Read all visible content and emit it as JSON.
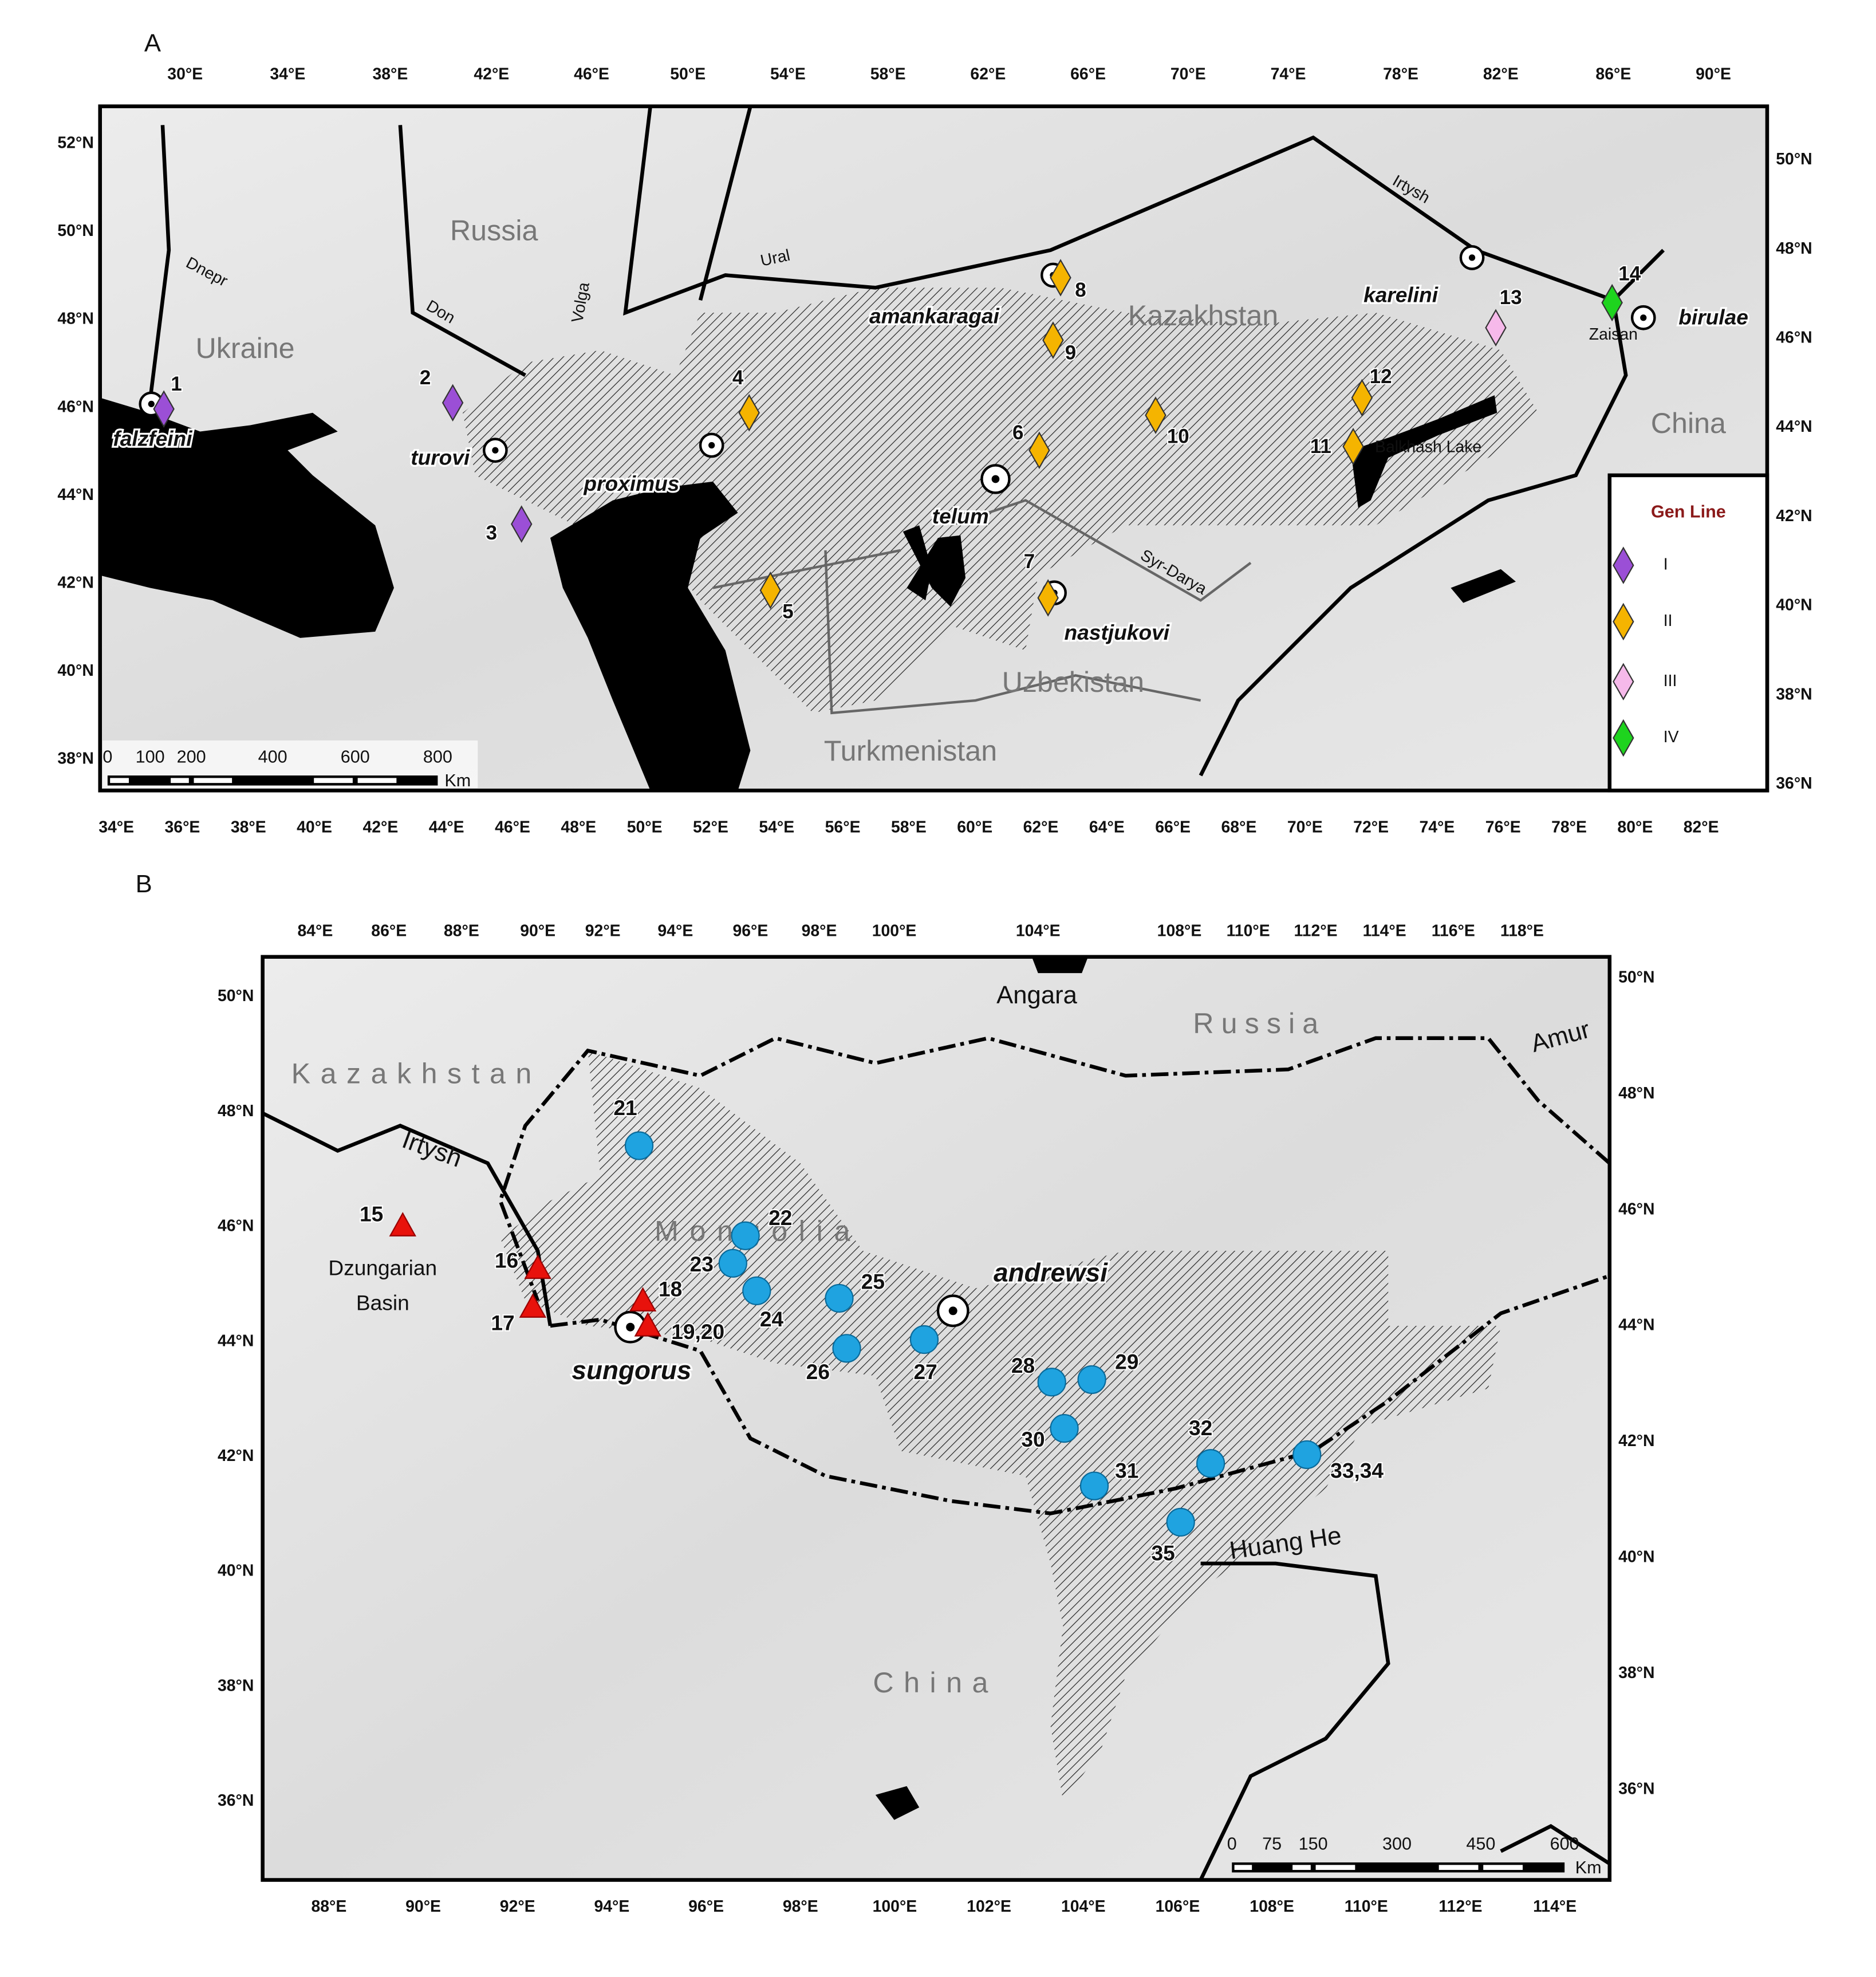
{
  "panel_a": {
    "label": "A",
    "top_ticks": [
      "30°E",
      "34°E",
      "38°E",
      "42°E",
      "46°E",
      "50°E",
      "54°E",
      "58°E",
      "62°E",
      "66°E",
      "70°E",
      "74°E",
      "78°E",
      "82°E",
      "86°E",
      "90°E"
    ],
    "bottom_ticks": [
      "34°E",
      "36°E",
      "38°E",
      "40°E",
      "42°E",
      "44°E",
      "46°E",
      "48°E",
      "50°E",
      "52°E",
      "54°E",
      "56°E",
      "58°E",
      "60°E",
      "62°E",
      "64°E",
      "66°E",
      "68°E",
      "70°E",
      "72°E",
      "74°E",
      "76°E",
      "78°E",
      "80°E",
      "82°E"
    ],
    "left_ticks": [
      "52°N",
      "50°N",
      "48°N",
      "46°N",
      "44°N",
      "42°N",
      "40°N",
      "38°N"
    ],
    "right_ticks": [
      "50°N",
      "48°N",
      "46°N",
      "44°N",
      "42°N",
      "40°N",
      "38°N",
      "36°N"
    ],
    "countries": [
      "Russia",
      "Ukraine",
      "Kazakhstan",
      "China",
      "Uzbekistan",
      "Turkmenistan"
    ],
    "waters": [
      "Dnepr",
      "Don",
      "Volga",
      "Ural",
      "Irtysh",
      "Syr-Darya",
      "Balkhash Lake",
      "Zaisan"
    ],
    "taxa": [
      "falzfeini",
      "turovi",
      "proximus",
      "telum",
      "nastjukovi",
      "amankaragai",
      "karelini",
      "birulae"
    ],
    "sites": [
      "1",
      "2",
      "3",
      "4",
      "5",
      "6",
      "7",
      "8",
      "9",
      "10",
      "11",
      "12",
      "13",
      "14"
    ],
    "legend": {
      "title": "Gen Line",
      "entries": [
        {
          "label": "I",
          "color": "#9b4fd6"
        },
        {
          "label": "II",
          "color": "#f5b400"
        },
        {
          "label": "III",
          "color": "#f6b9ea"
        },
        {
          "label": "IV",
          "color": "#1ed41e"
        }
      ]
    },
    "scale": {
      "ticks": [
        "0",
        "100",
        "200",
        "400",
        "600",
        "800"
      ],
      "unit": "Km"
    }
  },
  "panel_b": {
    "label": "B",
    "top_ticks": [
      "84°E",
      "86°E",
      "88°E",
      "90°E",
      "92°E",
      "94°E",
      "96°E",
      "98°E",
      "100°E",
      "104°E",
      "108°E",
      "110°E",
      "112°E",
      "114°E",
      "116°E",
      "118°E"
    ],
    "bottom_ticks": [
      "88°E",
      "90°E",
      "92°E",
      "94°E",
      "96°E",
      "98°E",
      "100°E",
      "102°E",
      "104°E",
      "106°E",
      "108°E",
      "110°E",
      "112°E",
      "114°E"
    ],
    "left_ticks": [
      "50°N",
      "48°N",
      "46°N",
      "44°N",
      "42°N",
      "40°N",
      "38°N",
      "36°N"
    ],
    "right_ticks": [
      "50°N",
      "48°N",
      "46°N",
      "44°N",
      "42°N",
      "40°N",
      "38°N",
      "36°N"
    ],
    "countries": [
      "Kazakhstan",
      "Russia",
      "Mongolia",
      "China"
    ],
    "waters": [
      "Angara",
      "Amur",
      "Irtysh",
      "Huang He"
    ],
    "basin": [
      "Dzungarian",
      "Basin"
    ],
    "taxa": [
      "andrewsi",
      "sungorus"
    ],
    "sites": [
      "15",
      "16",
      "17",
      "18",
      "19,20",
      "21",
      "22",
      "23",
      "24",
      "25",
      "26",
      "27",
      "28",
      "29",
      "30",
      "31",
      "32",
      "33,34",
      "35"
    ],
    "scale": {
      "ticks": [
        "0",
        "75",
        "150",
        "300",
        "450",
        "600"
      ],
      "unit": "Km"
    }
  }
}
